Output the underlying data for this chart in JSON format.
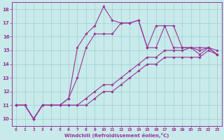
{
  "xlabel": "Windchill (Refroidissement éolien,°C)",
  "background_color": "#c8eaea",
  "line_color": "#993399",
  "grid_color": "#a0d0d0",
  "xlim": [
    -0.5,
    23.5
  ],
  "ylim": [
    9.5,
    18.5
  ],
  "xticks": [
    0,
    1,
    2,
    3,
    4,
    5,
    6,
    7,
    8,
    9,
    10,
    11,
    12,
    13,
    14,
    15,
    16,
    17,
    18,
    19,
    20,
    21,
    22,
    23
  ],
  "yticks": [
    10,
    11,
    12,
    13,
    14,
    15,
    16,
    17,
    18
  ],
  "lines": [
    [
      11.0,
      11.0,
      10.0,
      11.0,
      11.0,
      11.0,
      11.0,
      11.0,
      11.0,
      11.5,
      12.0,
      12.0,
      12.5,
      13.0,
      13.5,
      14.0,
      14.0,
      14.5,
      14.5,
      14.5,
      14.5,
      14.5,
      15.0,
      14.7
    ],
    [
      11.0,
      11.0,
      10.0,
      11.0,
      11.0,
      11.0,
      11.0,
      11.0,
      11.5,
      12.0,
      12.5,
      12.5,
      13.0,
      13.5,
      14.0,
      14.5,
      14.5,
      15.0,
      15.0,
      15.0,
      15.2,
      15.0,
      15.2,
      15.0
    ],
    [
      11.0,
      11.0,
      10.0,
      11.0,
      11.0,
      11.0,
      11.5,
      13.0,
      15.2,
      16.2,
      16.2,
      16.2,
      17.0,
      17.0,
      17.2,
      15.2,
      15.2,
      16.8,
      16.8,
      15.2,
      15.2,
      15.2,
      15.2,
      14.7
    ],
    [
      11.0,
      11.0,
      10.0,
      11.0,
      11.0,
      11.0,
      11.5,
      15.2,
      16.2,
      16.8,
      18.2,
      17.2,
      17.0,
      17.0,
      17.2,
      15.2,
      16.8,
      16.8,
      15.2,
      15.2,
      15.2,
      14.7,
      15.2,
      14.7
    ]
  ]
}
